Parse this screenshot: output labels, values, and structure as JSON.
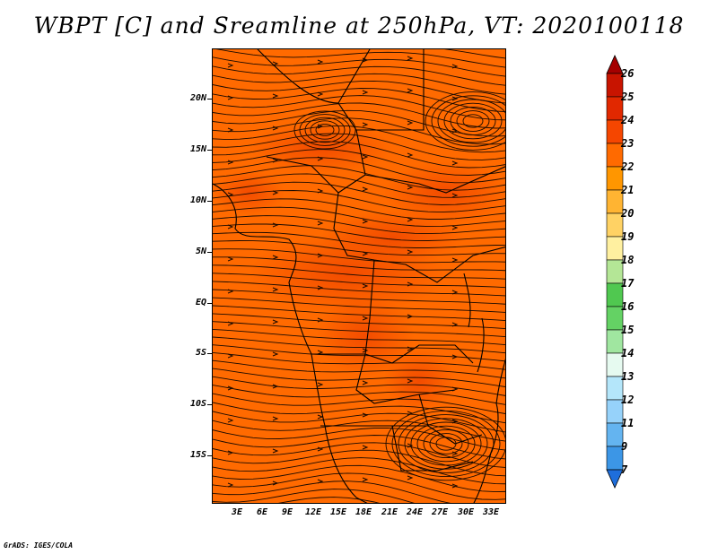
{
  "title": "WBPT [C] and Sreamline at 250hPa, VT: 2020100118",
  "map": {
    "field": "Wet-bulb potential temperature (C) with streamlines",
    "level": "250hPa",
    "valid_time": "2020100118",
    "lat_labels": [
      "20N",
      "15N",
      "10N",
      "5N",
      "EQ",
      "5S",
      "10S",
      "15S"
    ],
    "lon_labels": [
      "3E",
      "6E",
      "9E",
      "12E",
      "15E",
      "18E",
      "21E",
      "24E",
      "27E",
      "30E",
      "33E"
    ]
  },
  "colorbar": {
    "labels": [
      "26",
      "25",
      "24",
      "23",
      "22",
      "21",
      "20",
      "19",
      "18",
      "17",
      "16",
      "15",
      "14",
      "13",
      "12",
      "11",
      "9",
      "7"
    ],
    "colors": [
      "#a50000",
      "#c81400",
      "#e12800",
      "#f54600",
      "#ff6a00",
      "#ff9600",
      "#ffb432",
      "#ffd264",
      "#fff0a0",
      "#b4e696",
      "#50c850",
      "#64d264",
      "#a0e6a0",
      "#e6faf0",
      "#b4e6fa",
      "#96d2fa",
      "#64b4f0",
      "#3c96e6",
      "#1e6edc"
    ]
  },
  "credit": "GrADS: IGES/COLA"
}
